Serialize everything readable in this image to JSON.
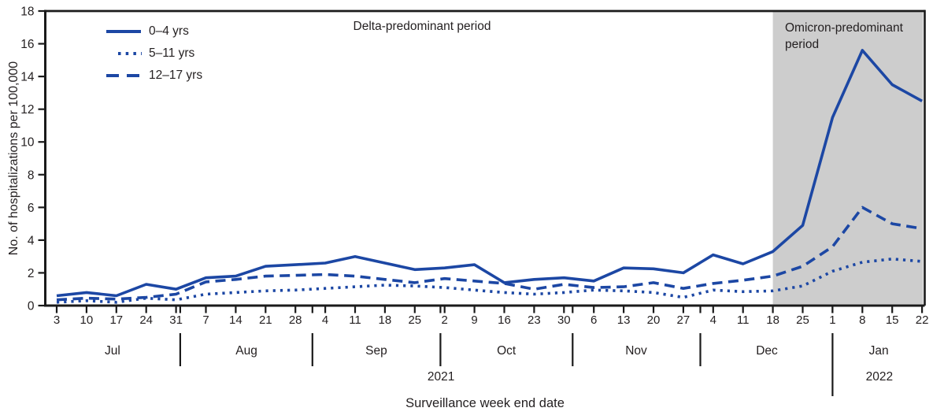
{
  "figure": {
    "y_axis_title": "No. of hospitalizations per 100,000",
    "x_axis_title": "Surveillance week end date",
    "delta_period_label": "Delta-predominant period",
    "omicron_period_label_line1": "Omicron-predominant",
    "omicron_period_label_line2": "period",
    "colors": {
      "line_blue": "#1c47a4",
      "shade_gray": "#cdcdcd",
      "axis_black": "#1a1a1a",
      "text": "#231f20"
    }
  },
  "legend": {
    "items": [
      {
        "label": "0–4 yrs",
        "style": "solid"
      },
      {
        "label": "5–11 yrs",
        "style": "dotted"
      },
      {
        "label": "12–17 yrs",
        "style": "dashed"
      }
    ]
  },
  "chart_data": {
    "type": "line",
    "title": "",
    "xlabel": "Surveillance week end date",
    "ylabel": "No. of hospitalizations per 100,000",
    "ylim": [
      0,
      18
    ],
    "y_ticks": [
      0,
      2,
      4,
      6,
      8,
      10,
      12,
      14,
      16,
      18
    ],
    "grid": false,
    "legend_position": "top-left-inside",
    "x_tick_labels": [
      "3",
      "10",
      "17",
      "24",
      "31",
      "7",
      "14",
      "21",
      "28",
      "4",
      "11",
      "18",
      "25",
      "2",
      "9",
      "16",
      "23",
      "30",
      "6",
      "13",
      "20",
      "27",
      "4",
      "11",
      "18",
      "25",
      "1",
      "8",
      "15",
      "22"
    ],
    "months": [
      {
        "label": "Jul"
      },
      {
        "label": "Aug"
      },
      {
        "label": "Sep"
      },
      {
        "label": "Oct"
      },
      {
        "label": "Nov"
      },
      {
        "label": "Dec"
      },
      {
        "label": "Jan"
      }
    ],
    "month_label_week_pos": [
      1.87,
      6.36,
      10.71,
      15.07,
      19.42,
      23.8,
      27.55
    ],
    "month_dividers_week_pos": [
      4.14,
      8.57,
      12.86,
      17.29,
      21.57,
      26.0
    ],
    "year_labels": [
      {
        "label": "2021",
        "week_pos": 12.88
      },
      {
        "label": "2022",
        "week_pos": 27.57
      }
    ],
    "shaded_region": {
      "label": "Omicron-predominant period",
      "start_week_index": 24
    },
    "annotations": [
      {
        "text": "Delta-predominant period",
        "region": "unshaded"
      },
      {
        "text": "Omicron-predominant period",
        "region": "shaded"
      }
    ],
    "series": [
      {
        "name": "0–4 yrs",
        "dash": "solid",
        "values": [
          0.6,
          0.8,
          0.6,
          1.3,
          1.0,
          1.7,
          1.8,
          2.4,
          2.5,
          2.6,
          3.0,
          2.6,
          2.2,
          2.3,
          2.5,
          1.4,
          1.6,
          1.7,
          1.5,
          2.3,
          2.25,
          2.0,
          3.1,
          2.55,
          3.3,
          4.9,
          11.5,
          15.6,
          13.5,
          12.5
        ]
      },
      {
        "name": "5–11 yrs",
        "dash": "dotted",
        "values": [
          0.2,
          0.3,
          0.2,
          0.45,
          0.35,
          0.7,
          0.8,
          0.9,
          0.95,
          1.05,
          1.15,
          1.25,
          1.2,
          1.1,
          0.95,
          0.8,
          0.7,
          0.8,
          0.95,
          0.9,
          0.8,
          0.5,
          0.95,
          0.85,
          0.9,
          1.2,
          2.1,
          2.65,
          2.85,
          2.7
        ]
      },
      {
        "name": "12–17 yrs",
        "dash": "dashed",
        "values": [
          0.35,
          0.45,
          0.4,
          0.5,
          0.7,
          1.45,
          1.6,
          1.8,
          1.85,
          1.9,
          1.8,
          1.6,
          1.4,
          1.65,
          1.5,
          1.35,
          1.0,
          1.3,
          1.1,
          1.15,
          1.4,
          1.05,
          1.35,
          1.55,
          1.8,
          2.4,
          3.6,
          6.0,
          5.0,
          4.7
        ]
      }
    ]
  }
}
